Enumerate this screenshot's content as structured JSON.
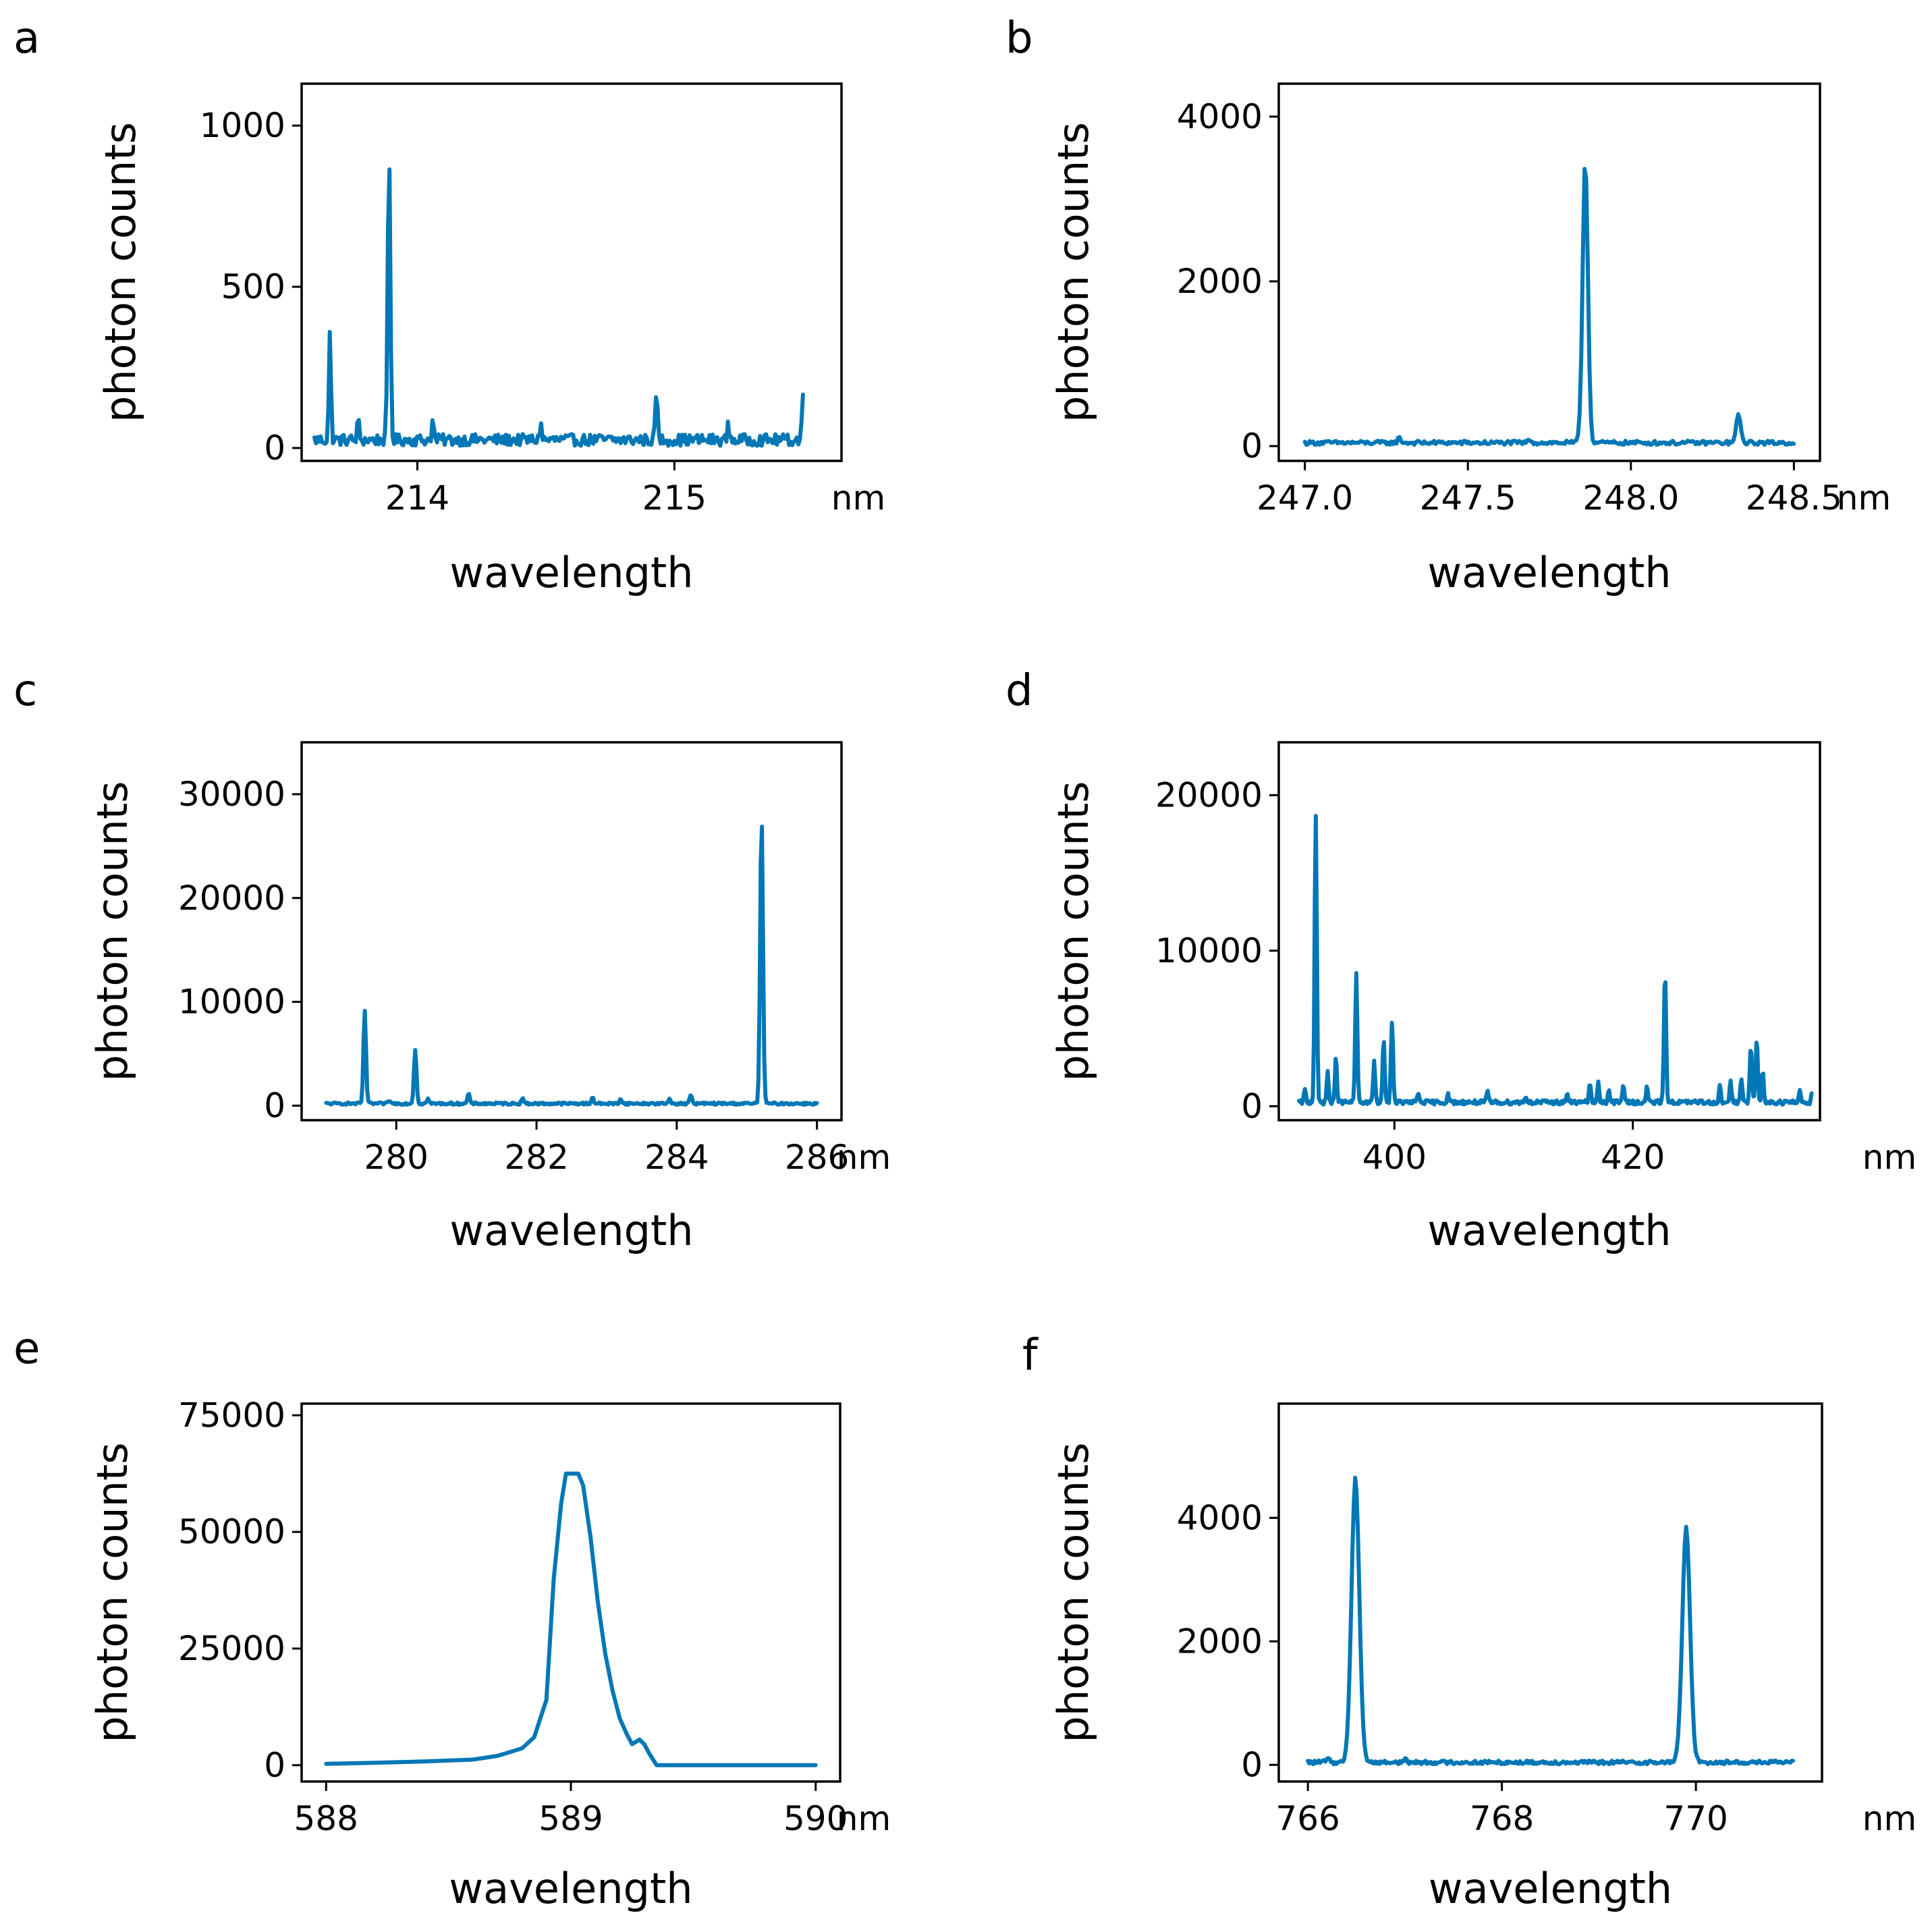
{
  "colors": {
    "series": "#0077b6"
  },
  "chart_data": [
    {
      "panel": "a",
      "type": "line",
      "xlabel": "wavelength",
      "ylabel": "photon counts",
      "x_unit": "nm",
      "xlim": [
        213.55,
        215.65
      ],
      "ylim": [
        -40,
        1130
      ],
      "xticks": [
        214,
        215
      ],
      "xtick_labels": [
        "214",
        "215"
      ],
      "yticks": [
        0,
        500,
        1000
      ],
      "ytick_labels": [
        "0",
        "500",
        "1000"
      ],
      "peaks": [
        [
          213.66,
          330,
          0.004
        ],
        [
          213.77,
          60,
          0.004
        ],
        [
          213.89,
          900,
          0.005
        ],
        [
          214.06,
          60,
          0.004
        ],
        [
          214.48,
          50,
          0.004
        ],
        [
          214.93,
          160,
          0.004
        ],
        [
          215.21,
          45,
          0.004
        ],
        [
          215.5,
          145,
          0.004
        ]
      ],
      "baseline": {
        "x0": 213.6,
        "x1": 215.5,
        "level": 25,
        "noise": 18,
        "points": 320
      }
    },
    {
      "panel": "b",
      "type": "line",
      "xlabel": "wavelength",
      "ylabel": "photon counts",
      "x_unit": "nm",
      "xlim": [
        246.92,
        248.58
      ],
      "ylim": [
        -180,
        4400
      ],
      "xticks": [
        247.0,
        247.5,
        248.0,
        248.5
      ],
      "xtick_labels": [
        "247.0",
        "247.5",
        "248.0",
        "248.5"
      ],
      "yticks": [
        0,
        2000,
        4000
      ],
      "ytick_labels": [
        "0",
        "2000",
        "4000"
      ],
      "peaks": [
        [
          247.86,
          3450,
          0.008
        ],
        [
          248.33,
          330,
          0.007
        ],
        [
          247.29,
          60,
          0.005
        ],
        [
          247.69,
          40,
          0.005
        ]
      ],
      "baseline": {
        "x0": 247.0,
        "x1": 248.5,
        "level": 40,
        "noise": 25,
        "points": 300
      }
    },
    {
      "panel": "c",
      "type": "line",
      "xlabel": "wavelength",
      "ylabel": "photon counts",
      "x_unit": "nm",
      "xlim": [
        278.65,
        286.35
      ],
      "ylim": [
        -1400,
        35000
      ],
      "xticks": [
        280,
        282,
        284,
        286
      ],
      "xtick_labels": [
        "280",
        "282",
        "284",
        "286"
      ],
      "yticks": [
        0,
        10000,
        20000,
        30000
      ],
      "ytick_labels": [
        "0",
        "10000",
        "20000",
        "30000"
      ],
      "peaks": [
        [
          279.55,
          9000,
          0.018
        ],
        [
          280.27,
          5200,
          0.018
        ],
        [
          285.21,
          27500,
          0.02
        ],
        [
          281.03,
          1000,
          0.015
        ],
        [
          280.45,
          500,
          0.015
        ],
        [
          281.8,
          600,
          0.015
        ],
        [
          282.8,
          700,
          0.015
        ],
        [
          283.2,
          500,
          0.015
        ],
        [
          284.2,
          900,
          0.015
        ],
        [
          283.9,
          500,
          0.015
        ],
        [
          279.9,
          300,
          0.015
        ]
      ],
      "baseline": {
        "x0": 279.0,
        "x1": 286.0,
        "level": 200,
        "noise": 110,
        "points": 420
      }
    },
    {
      "panel": "d",
      "type": "line",
      "xlabel": "wavelength",
      "ylabel": "photon counts",
      "x_unit": "nm",
      "xlim": [
        390.3,
        435.7
      ],
      "ylim": [
        -900,
        23400
      ],
      "xticks": [
        400,
        420
      ],
      "xtick_labels": [
        "400",
        "420"
      ],
      "yticks": [
        0,
        10000,
        20000
      ],
      "ytick_labels": [
        "0",
        "10000",
        "20000"
      ],
      "peaks": [
        [
          393.4,
          18500,
          0.09
        ],
        [
          396.8,
          8200,
          0.09
        ],
        [
          399.8,
          5300,
          0.09
        ],
        [
          399.1,
          3900,
          0.09
        ],
        [
          398.3,
          2700,
          0.08
        ],
        [
          395.1,
          3000,
          0.08
        ],
        [
          394.4,
          2000,
          0.08
        ],
        [
          392.5,
          800,
          0.08
        ],
        [
          422.7,
          8500,
          0.09
        ],
        [
          430.4,
          4100,
          0.09
        ],
        [
          429.9,
          3500,
          0.09
        ],
        [
          430.9,
          2000,
          0.08
        ],
        [
          429.1,
          1600,
          0.08
        ],
        [
          428.2,
          1300,
          0.08
        ],
        [
          427.3,
          1000,
          0.08
        ],
        [
          435.1,
          1500,
          0.08
        ],
        [
          434.0,
          800,
          0.08
        ],
        [
          416.4,
          1300,
          0.08
        ],
        [
          417.1,
          1200,
          0.08
        ],
        [
          419.2,
          1200,
          0.08
        ],
        [
          421.2,
          1000,
          0.08
        ],
        [
          418.0,
          800,
          0.08
        ],
        [
          414.5,
          600,
          0.08
        ],
        [
          407.8,
          700,
          0.08
        ],
        [
          402.0,
          600,
          0.08
        ],
        [
          404.5,
          500,
          0.08
        ],
        [
          411.0,
          400,
          0.08
        ]
      ],
      "baseline": {
        "x0": 392.0,
        "x1": 435.0,
        "level": 250,
        "noise": 140,
        "points": 520
      }
    },
    {
      "panel": "e",
      "type": "line",
      "xlabel": "wavelength",
      "ylabel": "photon counts",
      "x_unit": "nm",
      "xlim": [
        587.9,
        590.1
      ],
      "ylim": [
        -3500,
        77500
      ],
      "xticks": [
        588,
        589,
        590
      ],
      "xtick_labels": [
        "588",
        "589",
        "590"
      ],
      "yticks": [
        0,
        25000,
        50000,
        75000
      ],
      "ytick_labels": [
        "0",
        "25000",
        "50000",
        "75000"
      ],
      "x": [
        588.0,
        588.2,
        588.4,
        588.6,
        588.7,
        588.8,
        588.85,
        588.9,
        588.93,
        588.96,
        588.98,
        589.0,
        589.03,
        589.05,
        589.08,
        589.11,
        589.14,
        589.17,
        589.2,
        589.23,
        589.25,
        589.28,
        589.3,
        589.32,
        589.35,
        589.4,
        589.6,
        589.8,
        590.0
      ],
      "y": [
        300,
        500,
        800,
        1200,
        2000,
        3600,
        6000,
        14000,
        40000,
        56000,
        62500,
        62500,
        62500,
        60000,
        49000,
        35000,
        24000,
        16000,
        10000,
        6500,
        4500,
        5500,
        4500,
        2500,
        0,
        0,
        0,
        0,
        0
      ]
    },
    {
      "panel": "f",
      "type": "line",
      "xlabel": "wavelength",
      "ylabel": "photon counts",
      "x_unit": "nm",
      "xlim": [
        765.7,
        771.3
      ],
      "ylim": [
        -270,
        5850
      ],
      "xticks": [
        766,
        768,
        770
      ],
      "xtick_labels": [
        "766",
        "768",
        "770"
      ],
      "yticks": [
        0,
        2000,
        4000
      ],
      "ytick_labels": [
        "0",
        "2000",
        "4000"
      ],
      "peaks": [
        [
          766.49,
          4600,
          0.04
        ],
        [
          769.9,
          3800,
          0.04
        ],
        [
          766.2,
          60,
          0.02
        ],
        [
          767.0,
          40,
          0.02
        ]
      ],
      "baseline": {
        "x0": 766.0,
        "x1": 771.0,
        "level": 40,
        "noise": 30,
        "points": 360
      }
    }
  ]
}
